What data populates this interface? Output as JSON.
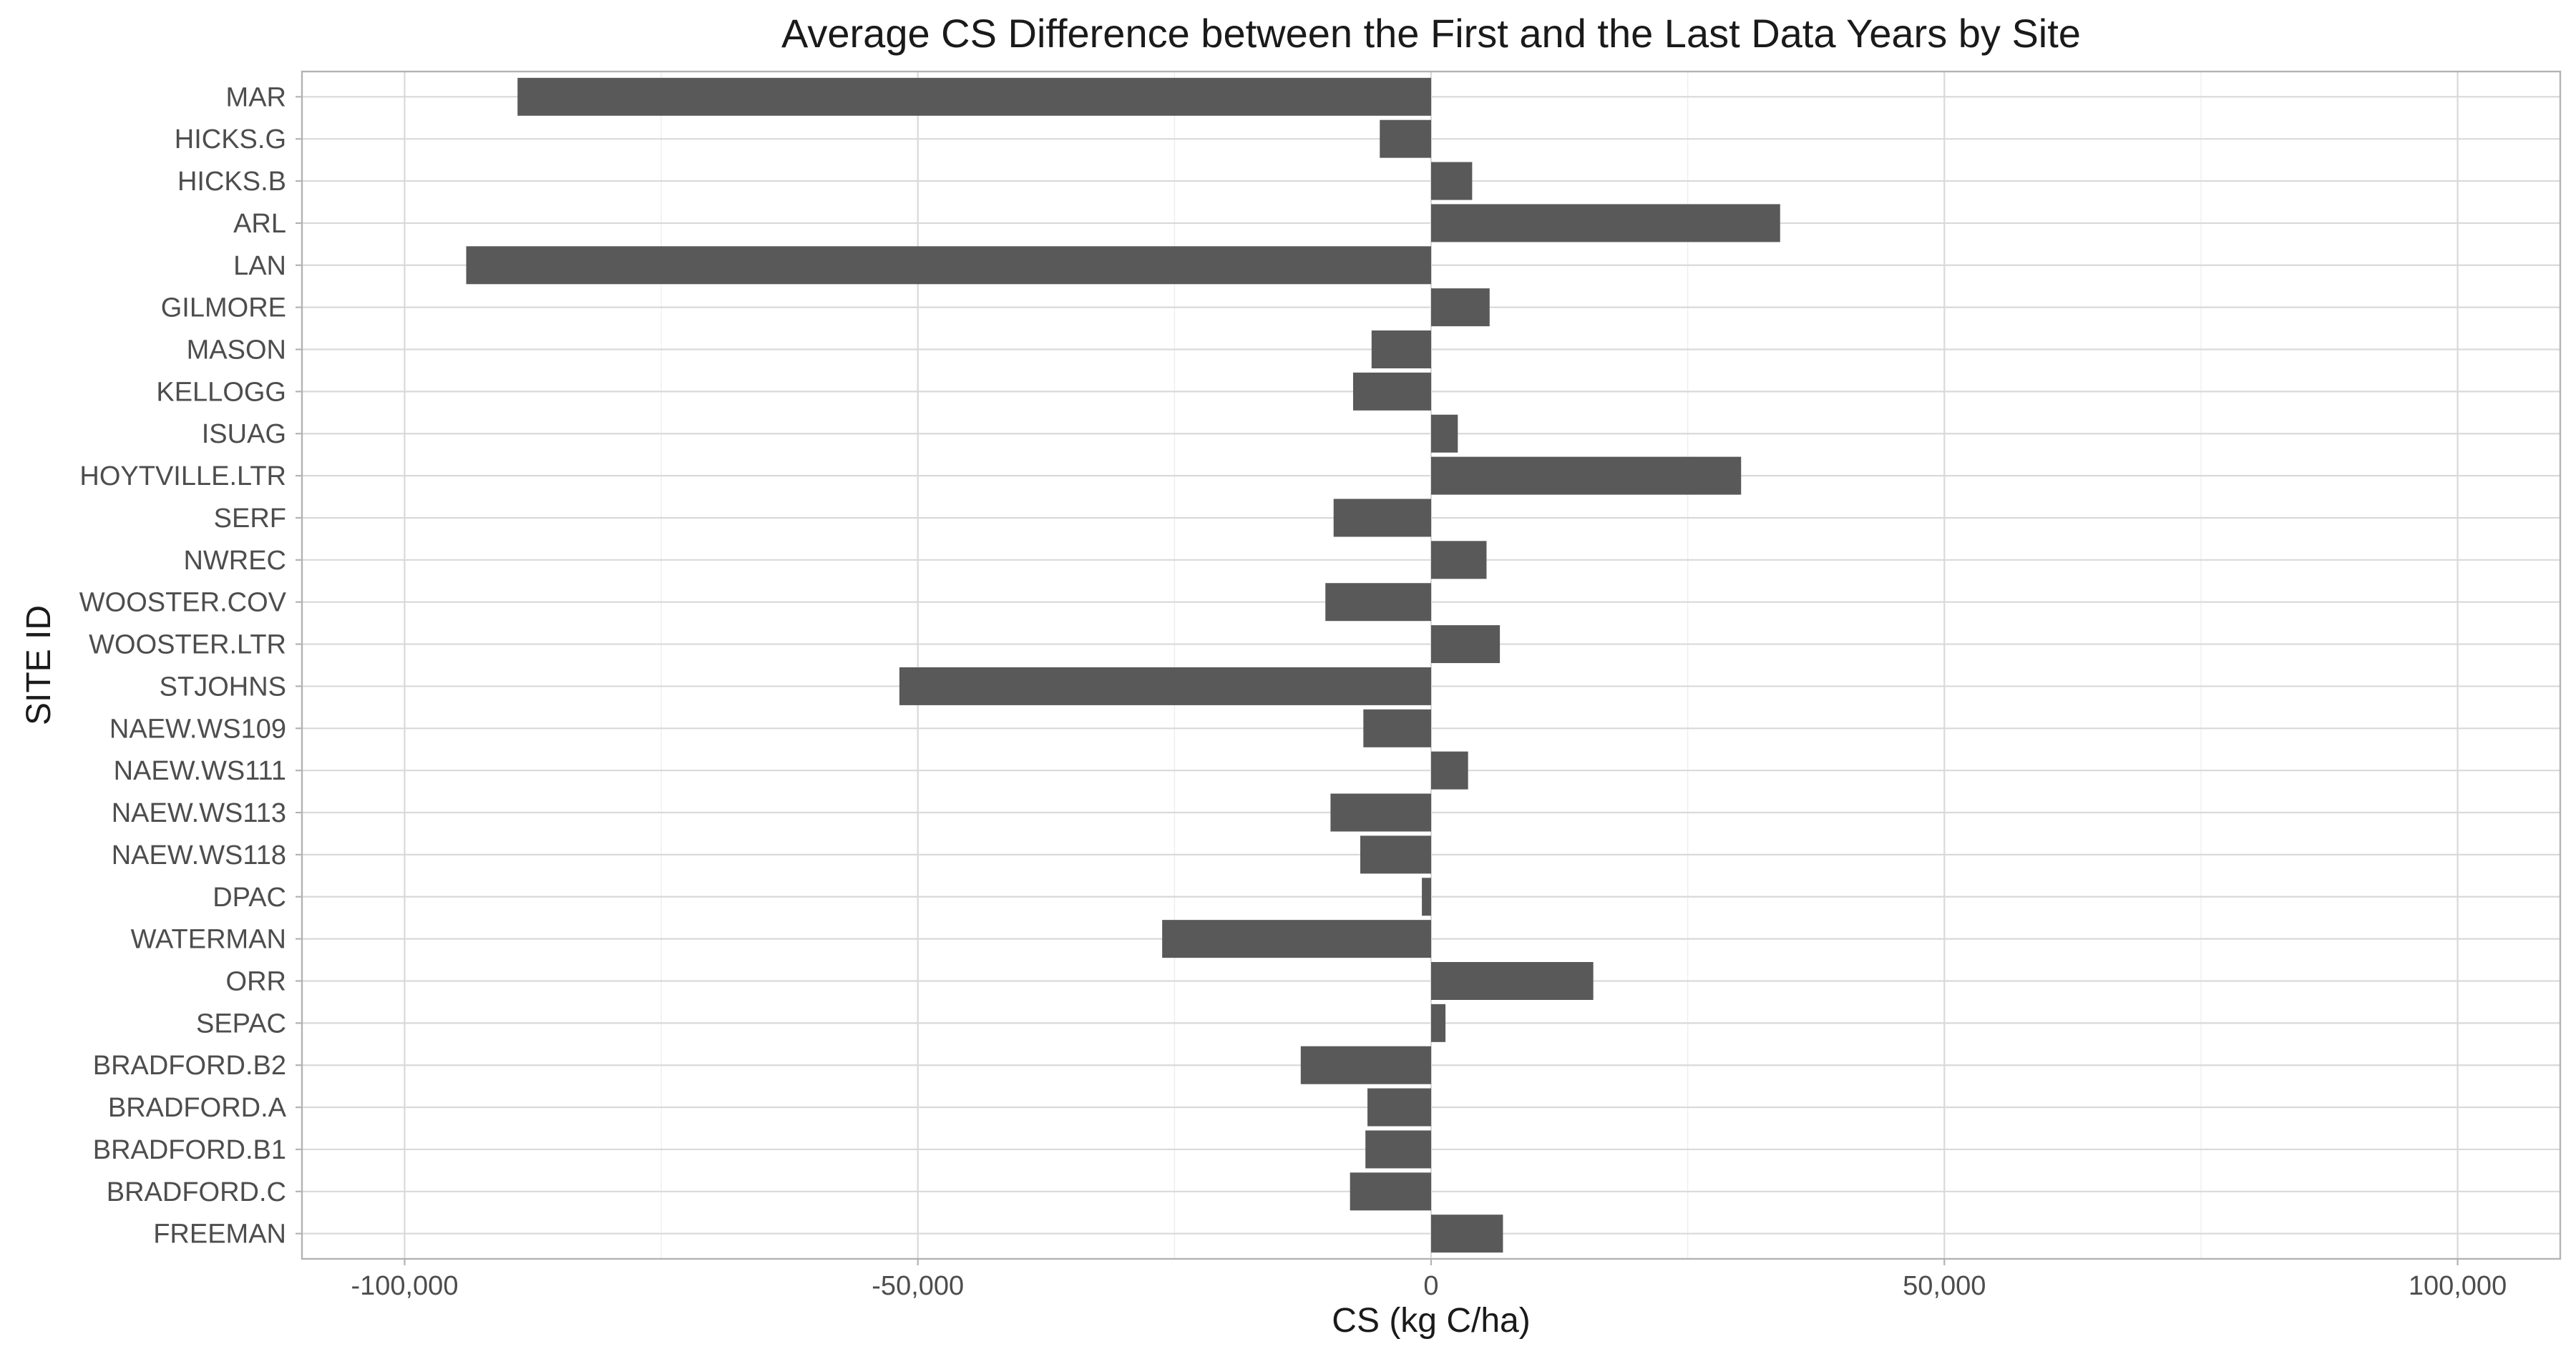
{
  "chart_data": {
    "type": "bar",
    "orientation": "horizontal",
    "title": "Average CS Difference between the First and the Last Data Years by Site",
    "xlabel": "CS (kg C/ha)",
    "ylabel": "SITE ID",
    "xlim": [
      -110000,
      110000
    ],
    "x_ticks": [
      -100000,
      -50000,
      0,
      50000,
      100000
    ],
    "x_tick_labels": [
      "-100,000",
      "-50,000",
      "0",
      "50,000",
      "100,000"
    ],
    "grid": true,
    "bar_color": "#595959",
    "categories": [
      "MAR",
      "HICKS.G",
      "HICKS.B",
      "ARL",
      "LAN",
      "GILMORE",
      "MASON",
      "KELLOGG",
      "ISUAG",
      "HOYTVILLE.LTR",
      "SERF",
      "NWREC",
      "WOOSTER.COV",
      "WOOSTER.LTR",
      "STJOHNS",
      "NAEW.WS109",
      "NAEW.WS111",
      "NAEW.WS113",
      "NAEW.WS118",
      "DPAC",
      "WATERMAN",
      "ORR",
      "SEPAC",
      "BRADFORD.B2",
      "BRADFORD.A",
      "BRADFORD.B1",
      "BRADFORD.C",
      "FREEMAN"
    ],
    "values": [
      -89000,
      -5000,
      4000,
      34000,
      -94000,
      5700,
      -5800,
      -7600,
      2600,
      30200,
      -9500,
      5400,
      -10300,
      6700,
      -51800,
      -6600,
      3600,
      -9800,
      -6900,
      -900,
      -26200,
      15800,
      1400,
      -12700,
      -6200,
      -6400,
      -7900,
      7000
    ]
  }
}
